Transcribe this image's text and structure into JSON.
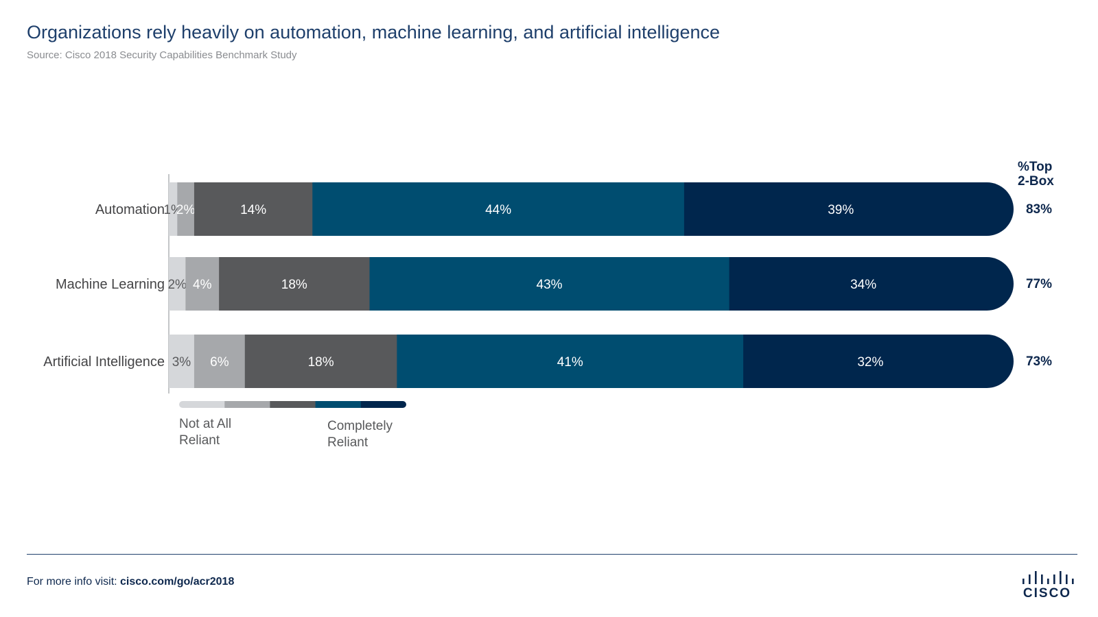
{
  "header": {
    "title": "Organizations rely heavily on automation, machine learning, and artificial intelligence",
    "subtitle": "Source: Cisco 2018 Security Capabilities Benchmark Study"
  },
  "chart_data": {
    "type": "bar",
    "orientation": "horizontal",
    "stacked": true,
    "categories": [
      "Automation",
      "Machine Learning",
      "Artificial Intelligence"
    ],
    "series": [
      {
        "values": [
          1,
          2,
          3
        ],
        "color": "#d5d7da"
      },
      {
        "values": [
          2,
          4,
          6
        ],
        "color": "#a6a8ab"
      },
      {
        "values": [
          14,
          18,
          18
        ],
        "color": "#58595b"
      },
      {
        "values": [
          44,
          43,
          41
        ],
        "color": "#004d70"
      },
      {
        "values": [
          39,
          34,
          32
        ],
        "color": "#00264d"
      }
    ],
    "data_labels": [
      [
        "1%",
        "2%",
        "14%",
        "44%",
        "39%"
      ],
      [
        "2%",
        "4%",
        "18%",
        "43%",
        "34%"
      ],
      [
        "3%",
        "6%",
        "18%",
        "41%",
        "32%"
      ]
    ],
    "label_colors": [
      "#58595b",
      "#ffffff",
      "#ffffff",
      "#ffffff",
      "#ffffff"
    ],
    "top2box": {
      "title_line1": "%Top",
      "title_line2": "2-Box",
      "values": [
        "83%",
        "77%",
        "73%"
      ]
    },
    "scale_legend": {
      "low_line1": "Not at All",
      "low_line2": "Reliant",
      "high_line1": "Completely",
      "high_line2": "Reliant"
    },
    "grid": false,
    "legend_position": "bottom-left"
  },
  "footer": {
    "prefix": "For more info visit: ",
    "link": "cisco.com/go/acr2018",
    "brand": "CISCO"
  },
  "colors": {
    "title": "#1e3f6b",
    "accent_dark": "#00264d",
    "accent": "#004d70"
  }
}
